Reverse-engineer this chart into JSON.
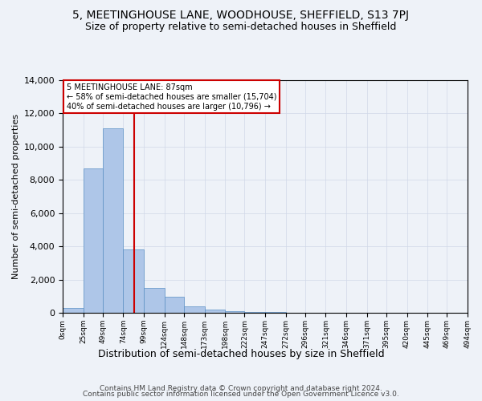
{
  "title": "5, MEETINGHOUSE LANE, WOODHOUSE, SHEFFIELD, S13 7PJ",
  "subtitle": "Size of property relative to semi-detached houses in Sheffield",
  "xlabel": "Distribution of semi-detached houses by size in Sheffield",
  "ylabel": "Number of semi-detached properties",
  "footer_line1": "Contains HM Land Registry data © Crown copyright and database right 2024.",
  "footer_line2": "Contains public sector information licensed under the Open Government Licence v3.0.",
  "property_label": "5 MEETINGHOUSE LANE: 87sqm",
  "smaller_pct": 58,
  "smaller_count": "15,704",
  "larger_pct": 40,
  "larger_count": "10,796",
  "bin_edges": [
    0,
    25,
    49,
    74,
    99,
    124,
    148,
    173,
    198,
    222,
    247,
    272,
    296,
    321,
    346,
    371,
    395,
    420,
    445,
    469,
    494
  ],
  "bin_labels": [
    "0sqm",
    "25sqm",
    "49sqm",
    "74sqm",
    "99sqm",
    "124sqm",
    "148sqm",
    "173sqm",
    "198sqm",
    "222sqm",
    "247sqm",
    "272sqm",
    "296sqm",
    "321sqm",
    "346sqm",
    "371sqm",
    "395sqm",
    "420sqm",
    "445sqm",
    "469sqm",
    "494sqm"
  ],
  "bar_heights": [
    300,
    8700,
    11100,
    3800,
    1500,
    950,
    380,
    200,
    100,
    50,
    30,
    20,
    10,
    5,
    0,
    0,
    0,
    0,
    0,
    0
  ],
  "bar_color": "#aec6e8",
  "bar_edge_color": "#5a8fc4",
  "vline_x": 87,
  "vline_color": "#cc0000",
  "ylim": [
    0,
    14000
  ],
  "yticks": [
    0,
    2000,
    4000,
    6000,
    8000,
    10000,
    12000,
    14000
  ],
  "grid_color": "#d0d8e8",
  "bg_color": "#eef2f8",
  "annotation_box_color": "#cc0000",
  "title_fontsize": 10,
  "subtitle_fontsize": 9
}
